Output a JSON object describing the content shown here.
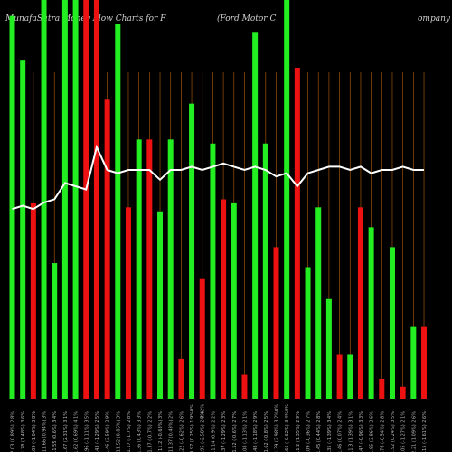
{
  "header": {
    "title_left": "MunafaSutra Money Flow Charts for F",
    "title_mid": "(Ford Motor C",
    "title_right": "ompany"
  },
  "colors": {
    "background": "#000000",
    "up": "#22ee22",
    "down": "#ee1111",
    "grid": "#a0520a",
    "line": "#ffffff",
    "label": "#bbbbbb"
  },
  "chart_data": {
    "type": "bar",
    "title": "MunafaSutra Money Flow Charts for F (Ford Motor Company)",
    "ylim": [
      0,
      100
    ],
    "categories": [
      "12.03 (0.89%) 2.8%",
      "11.78 (1.48%) 3.6%",
      "11.09 (-1.04%) 3.8%",
      "11.66 (0.94%) 3%",
      "11.55 (0.6%) 3.4%",
      "11.67 (2.31%) 3.1%",
      "11.62 (0.69%) 4.1%",
      "11.96 (-1.11%) 3.5%",
      "11.43 (-1.29%) 2.5%",
      "11.46 (2.59%) 2.9%",
      "11.52 (0.86%) 3%",
      "11.17 (-1.7%) 2.8%",
      "11.36 (0.43%) 3.3%",
      "11.37 (-0.7%) 2.2%",
      "11.2 (-0.63%) 3%",
      "11.37 (0.43%) 2%",
      "11.22 (-0.62%) 2.6%",
      "10.97 (0.25%) 1.9%",
      "10.95 (-2.58%) 2.7%",
      "11.14 (0.9%) 2.2%",
      "11.37 (-1.29%) 2.3%",
      "11.52 (-0.6%) 2.7%",
      "11.08 (-1.13%) 2.1%",
      "11.48 (-1.18%) 2.9%",
      "11.62 (-0.8%) 2.5%",
      "11.39 (2.98%) 3.2%",
      "11.66 (-0.62%) 3.4%",
      "11.2 (1.35%) 2.9%",
      "11.09 (-0.36%) 2.7%",
      "11.45 (0.44%) 2.8%",
      "11.35 (-1.39%) 3.4%",
      "11.46 (0.07%) 2.4%",
      "11.3 (1.39%) 3.1%",
      "11.47 (-0.96%) 3.3%",
      "11.85 (2.86%) 2.6%",
      "11.76 (-0.54%) 2.8%",
      "11.92 (0.24%) 3.5%",
      "12.05 (-1.27%) 2.1%",
      "12.21 (1.09%) 2.6%",
      "12.15 (-1.61%) 2.6%"
    ],
    "series": [
      {
        "kind": "bar",
        "direction": [
          "up",
          "up",
          "down",
          "up",
          "up",
          "up",
          "up",
          "down",
          "down",
          "down",
          "up",
          "down",
          "up",
          "down",
          "up",
          "up",
          "down",
          "up",
          "down",
          "up",
          "down",
          "up",
          "down",
          "up",
          "up",
          "down",
          "up",
          "down",
          "up",
          "up",
          "up",
          "down",
          "up",
          "down",
          "up",
          "down",
          "up",
          "down",
          "up",
          "down"
        ],
        "values": [
          96,
          85,
          49,
          100,
          34,
          100,
          100,
          100,
          100,
          75,
          94,
          48,
          65,
          65,
          47,
          65,
          10,
          74,
          30,
          64,
          50,
          49,
          6,
          92,
          64,
          38,
          100,
          83,
          33,
          48,
          25,
          11,
          11,
          48,
          43,
          5,
          38,
          3,
          18,
          18
        ]
      },
      {
        "kind": "line",
        "values": [
          58,
          59,
          58,
          60,
          61,
          66,
          65,
          64,
          77,
          70,
          69,
          70,
          70,
          70,
          67,
          70,
          70,
          71,
          70,
          71,
          72,
          71,
          70,
          71,
          70,
          68,
          69,
          65,
          69,
          70,
          71,
          71,
          70,
          71,
          69,
          70,
          70,
          71,
          70,
          70
        ]
      }
    ]
  },
  "x_markers": [
    {
      "index": 17,
      "label": "0%"
    },
    {
      "index": 18,
      "label": "-0.42%"
    },
    {
      "index": 25,
      "label": "0%"
    },
    {
      "index": 26,
      "label": "0%"
    }
  ]
}
